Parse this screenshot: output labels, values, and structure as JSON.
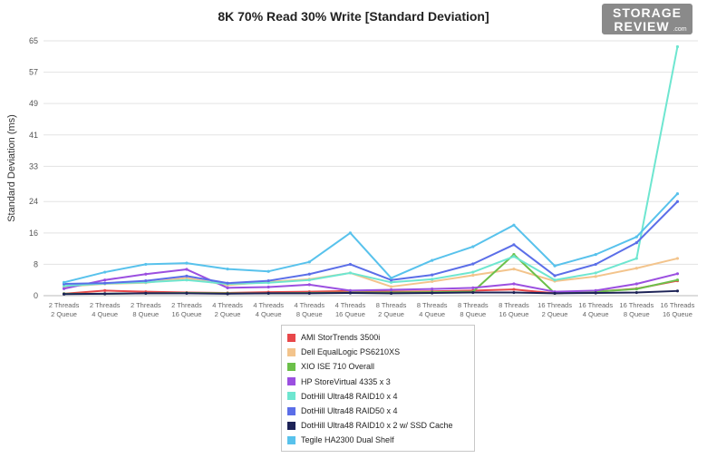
{
  "title": "8K 70% Read 30% Write [Standard Deviation]",
  "logo": {
    "line1": "STORAGE",
    "line2": "REVIEW",
    "suffix": ".com"
  },
  "chart_data": {
    "type": "line",
    "title": "8K 70% Read 30% Write [Standard Deviation]",
    "ylabel": "Standard Deviation (ms)",
    "xlabel": "",
    "ylim": [
      0,
      65
    ],
    "yticks": [
      0,
      8,
      16,
      24,
      33,
      41,
      49,
      57,
      65
    ],
    "grid": true,
    "legend_position": "bottom",
    "categories": [
      [
        "2 Threads",
        "2 Queue"
      ],
      [
        "2 Threads",
        "4 Queue"
      ],
      [
        "2 Threads",
        "8 Queue"
      ],
      [
        "2 Threads",
        "16 Queue"
      ],
      [
        "4 Threads",
        "2 Queue"
      ],
      [
        "4 Threads",
        "4 Queue"
      ],
      [
        "4 Threads",
        "8 Queue"
      ],
      [
        "4 Threads",
        "16 Queue"
      ],
      [
        "8 Threads",
        "2 Queue"
      ],
      [
        "8 Threads",
        "4 Queue"
      ],
      [
        "8 Threads",
        "8 Queue"
      ],
      [
        "8 Threads",
        "16 Queue"
      ],
      [
        "16 Threads",
        "2 Queue"
      ],
      [
        "16 Threads",
        "4 Queue"
      ],
      [
        "16 Threads",
        "8 Queue"
      ],
      [
        "16 Threads",
        "16 Queue"
      ]
    ],
    "series": [
      {
        "name": "AMI StorTrends 3500i",
        "color": "#e8474a",
        "values": [
          0.5,
          1.3,
          1.0,
          0.8,
          0.7,
          0.9,
          1.0,
          1.2,
          1.0,
          1.1,
          1.3,
          1.6,
          0.6,
          1.0,
          1.8,
          3.8
        ]
      },
      {
        "name": "Dell EqualLogic PS6210XS",
        "color": "#f3c48c",
        "values": [
          2.3,
          3.0,
          3.3,
          4.5,
          2.7,
          3.5,
          4.2,
          5.8,
          2.3,
          3.6,
          5.2,
          6.8,
          3.7,
          4.9,
          7.0,
          9.5
        ]
      },
      {
        "name": "XIO ISE 710 Overall",
        "color": "#6cc04a",
        "values": [
          0.5,
          0.5,
          0.6,
          0.7,
          0.6,
          0.6,
          0.7,
          0.8,
          0.8,
          0.9,
          1.0,
          10.5,
          0.6,
          1.0,
          1.7,
          4.0
        ]
      },
      {
        "name": "HP StoreVirtual 4335 x 3",
        "color": "#9b4fe0",
        "values": [
          1.8,
          4.0,
          5.5,
          6.7,
          2.0,
          2.2,
          2.8,
          1.3,
          1.5,
          1.7,
          2.0,
          3.0,
          1.0,
          1.3,
          3.0,
          5.6
        ]
      },
      {
        "name": "DotHill Ultra48 RAID10 x 4",
        "color": "#6ee6d0",
        "values": [
          2.5,
          3.1,
          3.4,
          4.0,
          3.0,
          3.3,
          4.0,
          5.8,
          3.4,
          4.2,
          6.0,
          10.0,
          4.0,
          5.8,
          9.5,
          63.5
        ]
      },
      {
        "name": "DotHill Ultra48 RAID50 x 4",
        "color": "#5b6ee8",
        "values": [
          3.0,
          3.2,
          3.8,
          5.0,
          3.2,
          3.8,
          5.5,
          8.0,
          4.0,
          5.3,
          8.1,
          13.0,
          5.1,
          8.0,
          13.5,
          24.0
        ]
      },
      {
        "name": "DotHill Ultra48 RAID10 x 2 w/ SSD Cache",
        "color": "#1d2357",
        "values": [
          0.4,
          0.5,
          0.6,
          0.6,
          0.5,
          0.6,
          0.6,
          0.7,
          0.6,
          0.7,
          0.8,
          0.8,
          0.6,
          0.7,
          0.8,
          1.2
        ]
      },
      {
        "name": "Tegile HA2300 Dual Shelf",
        "color": "#58c2ec",
        "values": [
          3.4,
          6.0,
          8.0,
          8.3,
          6.8,
          6.2,
          8.6,
          16.0,
          4.5,
          9.0,
          12.5,
          18.0,
          7.6,
          10.5,
          15.0,
          26.0
        ]
      }
    ]
  }
}
